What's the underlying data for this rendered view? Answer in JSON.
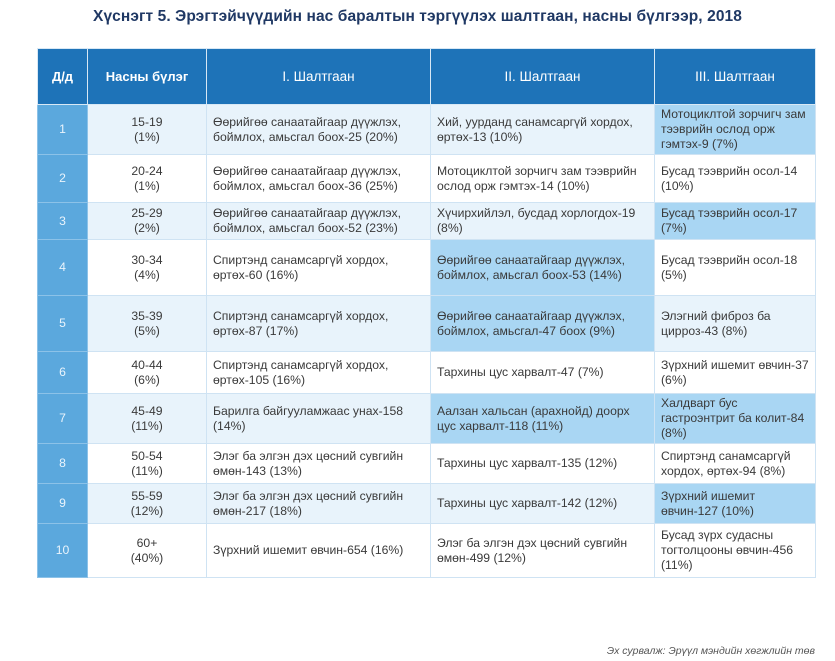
{
  "title": "Хүснэгт 5. Эрэгтэйчүүдийн нас баралтын тэргүүлэх шалтгаан, насны бүлгээр, 2018",
  "headers": [
    "Д/д",
    "Насны бүлэг",
    "I. Шалтгаан",
    "II. Шалтгаан",
    "III. Шалтгаан"
  ],
  "rows": [
    {
      "n": "1",
      "age": "15-19",
      "pct": "(1%)",
      "c1": "Өөрийгөө санаатайгаар дүүжлэх, боймлох, амьсгал боох-25 (20%)",
      "c2": "Хий, уурданд санамсаргүй хордох, өртөх-13 (10%)",
      "c3": "Мотоциклтой зорчигч зам тээврийн ослод орж гэмтэх-9 (7%)"
    },
    {
      "n": "2",
      "age": "20-24",
      "pct": "(1%)",
      "c1": "Өөрийгөө санаатайгаар дүүжлэх, боймлох, амьсгал боох-36 (25%)",
      "c2": "Мотоциклтой зорчигч зам тээврийн ослод орж гэмтэх-14 (10%)",
      "c3": "Бусад тээврийн осол-14 (10%)"
    },
    {
      "n": "3",
      "age": "25-29",
      "pct": "(2%)",
      "c1": "Өөрийгөө санаатайгаар дүүжлэх, боймлох, амьсгал боох-52 (23%)",
      "c2": "Хүчирхийлэл, бусдад хорлогдох-19 (8%)",
      "c3": "Бусад тээврийн осол-17 (7%)"
    },
    {
      "n": "4",
      "age": "30-34",
      "pct": "(4%)",
      "c1": "Спиртэнд санамсаргүй хордох, өртөх-60 (16%)",
      "c2": "Өөрийгөө санаатайгаар дүүжлэх, боймлох, амьсгал боох-53 (14%)",
      "c3": "Бусад тээврийн осол-18 (5%)"
    },
    {
      "n": "5",
      "age": "35-39",
      "pct": "(5%)",
      "c1": "Спиртэнд санамсаргүй хордох, өртөх-87 (17%)",
      "c2": "Өөрийгөө санаатайгаар дүүжлэх, боймлох, амьсгал-47 боох (9%)",
      "c3": "Элэгний фиброз ба цирроз-43 (8%)"
    },
    {
      "n": "6",
      "age": "40-44",
      "pct": "(6%)",
      "c1": "Спиртэнд санамсаргүй хордох, өртөх-105 (16%)",
      "c2": "Тархины цус харвалт-47 (7%)",
      "c3": "Зүрхний ишемит өвчин-37 (6%)"
    },
    {
      "n": "7",
      "age": "45-49",
      "pct": "(11%)",
      "c1": "Барилга байгууламжаас унах-158 (14%)",
      "c2": "Аалзан хальсан (арахнойд) доорх цус харвалт-118 (11%)",
      "c3": "Халдварт бус гастроэнтрит ба колит-84 (8%)"
    },
    {
      "n": "8",
      "age": "50-54",
      "pct": "(11%)",
      "c1": "Элэг ба элгэн дэх цөсний сувгийн өмөн-143 (13%)",
      "c2": "Тархины цус харвалт-135 (12%)",
      "c3": "Спиртэнд санамсаргүй хордох, өртөх-94 (8%)"
    },
    {
      "n": "9",
      "age": "55-59",
      "pct": "(12%)",
      "c1": "Элэг ба элгэн дэх цөсний сувгийн өмөн-217 (18%)",
      "c2": "Тархины цус харвалт-142 (12%)",
      "c3": "Зүрхний ишемит өвчин-127 (10%)"
    },
    {
      "n": "10",
      "age": "60+",
      "pct": "(40%)",
      "c1": "Зүрхний ишемит өвчин-654 (16%)",
      "c2": "Элэг ба элгэн дэх цөсний сувгийн өмөн-499 (12%)",
      "c3": "Бусад зүрх судасны тогтолцооны өвчин-456 (11%)"
    }
  ],
  "source": "Эх сурвалж: Эрүүл мэндийн хөгжлийн төв"
}
